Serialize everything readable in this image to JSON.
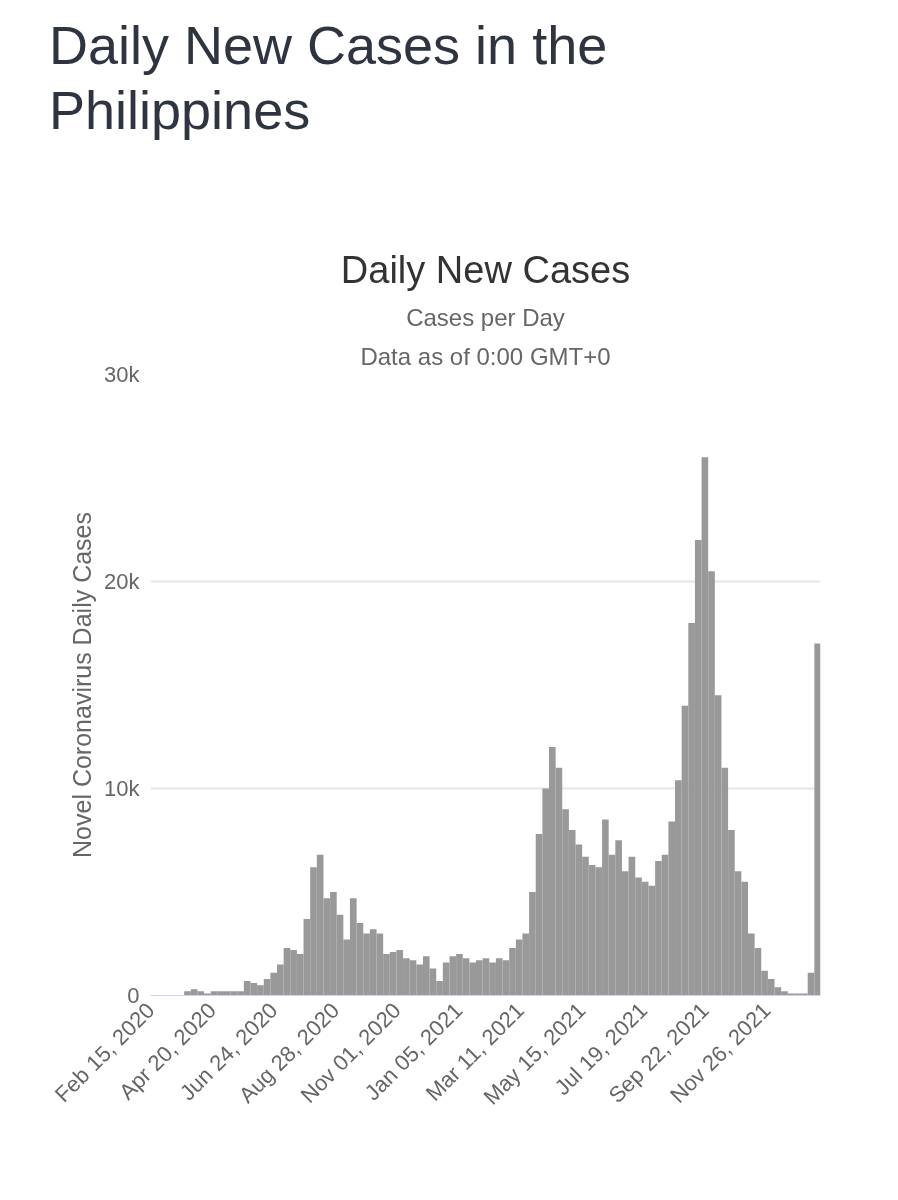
{
  "chart_data": {
    "type": "bar",
    "title": "Daily New Cases in the Philippines",
    "subtitle": "Daily New Cases",
    "annotations": [
      "Cases per Day",
      "Data as of 0:00 GMT+0"
    ],
    "ylabel": "Novel Coronavirus Daily Cases",
    "color": "#999999",
    "grid": "y",
    "xlim": [
      "2020-02-15",
      "2022-01-22"
    ],
    "ylim": [
      0,
      30000
    ],
    "yticks": [
      0,
      {
        "value": 10000,
        "label": "10k"
      },
      {
        "value": 20000,
        "label": "20k"
      },
      {
        "value": 30000,
        "label": "30k"
      }
    ],
    "xticks": [
      {
        "value": "2020-02-15",
        "label": "Feb 15, 2020"
      },
      {
        "value": "2020-04-20",
        "label": "Apr 20, 2020"
      },
      {
        "value": "2020-06-24",
        "label": "Jun 24, 2020"
      },
      {
        "value": "2020-08-28",
        "label": "Aug 28, 2020"
      },
      {
        "value": "2020-11-01",
        "label": "Nov 01, 2020"
      },
      {
        "value": "2021-01-05",
        "label": "Jan 05, 2021"
      },
      {
        "value": "2021-03-11",
        "label": "Mar 11, 2021"
      },
      {
        "value": "2021-05-15",
        "label": "May 15, 2021"
      },
      {
        "value": "2021-07-19",
        "label": "Jul 19, 2021"
      },
      {
        "value": "2021-09-22",
        "label": "Sep 22, 2021"
      },
      {
        "value": "2021-11-26",
        "label": "Nov 26, 2021"
      }
    ],
    "x": [
      "2020-02-19",
      "2020-02-26",
      "2020-03-04",
      "2020-03-11",
      "2020-03-18",
      "2020-03-25",
      "2020-04-01",
      "2020-04-08",
      "2020-04-15",
      "2020-04-22",
      "2020-04-29",
      "2020-05-06",
      "2020-05-13",
      "2020-05-20",
      "2020-05-27",
      "2020-06-03",
      "2020-06-10",
      "2020-06-17",
      "2020-06-24",
      "2020-07-01",
      "2020-07-08",
      "2020-07-15",
      "2020-07-22",
      "2020-07-29",
      "2020-08-05",
      "2020-08-12",
      "2020-08-19",
      "2020-08-26",
      "2020-09-02",
      "2020-09-09",
      "2020-09-16",
      "2020-09-23",
      "2020-09-30",
      "2020-10-07",
      "2020-10-14",
      "2020-10-21",
      "2020-10-28",
      "2020-11-04",
      "2020-11-11",
      "2020-11-18",
      "2020-11-25",
      "2020-12-02",
      "2020-12-09",
      "2020-12-16",
      "2020-12-23",
      "2020-12-30",
      "2021-01-06",
      "2021-01-13",
      "2021-01-20",
      "2021-01-27",
      "2021-02-03",
      "2021-02-10",
      "2021-02-17",
      "2021-02-24",
      "2021-03-03",
      "2021-03-10",
      "2021-03-17",
      "2021-03-24",
      "2021-03-31",
      "2021-04-07",
      "2021-04-14",
      "2021-04-21",
      "2021-04-28",
      "2021-05-05",
      "2021-05-12",
      "2021-05-19",
      "2021-05-26",
      "2021-06-02",
      "2021-06-09",
      "2021-06-16",
      "2021-06-23",
      "2021-06-30",
      "2021-07-07",
      "2021-07-14",
      "2021-07-21",
      "2021-07-28",
      "2021-08-04",
      "2021-08-11",
      "2021-08-18",
      "2021-08-25",
      "2021-09-01",
      "2021-09-08",
      "2021-09-15",
      "2021-09-22",
      "2021-09-29",
      "2021-10-06",
      "2021-10-13",
      "2021-10-20",
      "2021-10-27",
      "2021-11-03",
      "2021-11-10",
      "2021-11-17",
      "2021-11-24",
      "2021-12-01",
      "2021-12-08",
      "2021-12-15",
      "2021-12-22",
      "2021-12-29",
      "2022-01-05",
      "2022-01-12",
      "2022-01-19"
    ],
    "values": [
      0,
      0,
      0,
      0,
      0,
      200,
      300,
      200,
      100,
      200,
      200,
      200,
      200,
      200,
      700,
      600,
      500,
      800,
      1100,
      1500,
      2300,
      2200,
      2000,
      3700,
      6200,
      6800,
      4700,
      5000,
      3900,
      2700,
      4700,
      3500,
      3000,
      3200,
      3000,
      2000,
      2100,
      2200,
      1800,
      1700,
      1500,
      1900,
      1300,
      700,
      1600,
      1900,
      2000,
      1800,
      1600,
      1700,
      1800,
      1600,
      1800,
      1700,
      2300,
      2700,
      3000,
      5000,
      7800,
      10000,
      12000,
      11000,
      9000,
      8000,
      7300,
      6700,
      6300,
      6200,
      8500,
      6800,
      7500,
      6000,
      6700,
      5700,
      5500,
      5300,
      6500,
      6800,
      8400,
      10400,
      14000,
      18000,
      22000,
      26000,
      20500,
      14500,
      11000,
      8000,
      6000,
      5500,
      3000,
      2300,
      1200,
      800,
      400,
      200,
      100,
      100,
      100,
      1100,
      17000
    ]
  }
}
